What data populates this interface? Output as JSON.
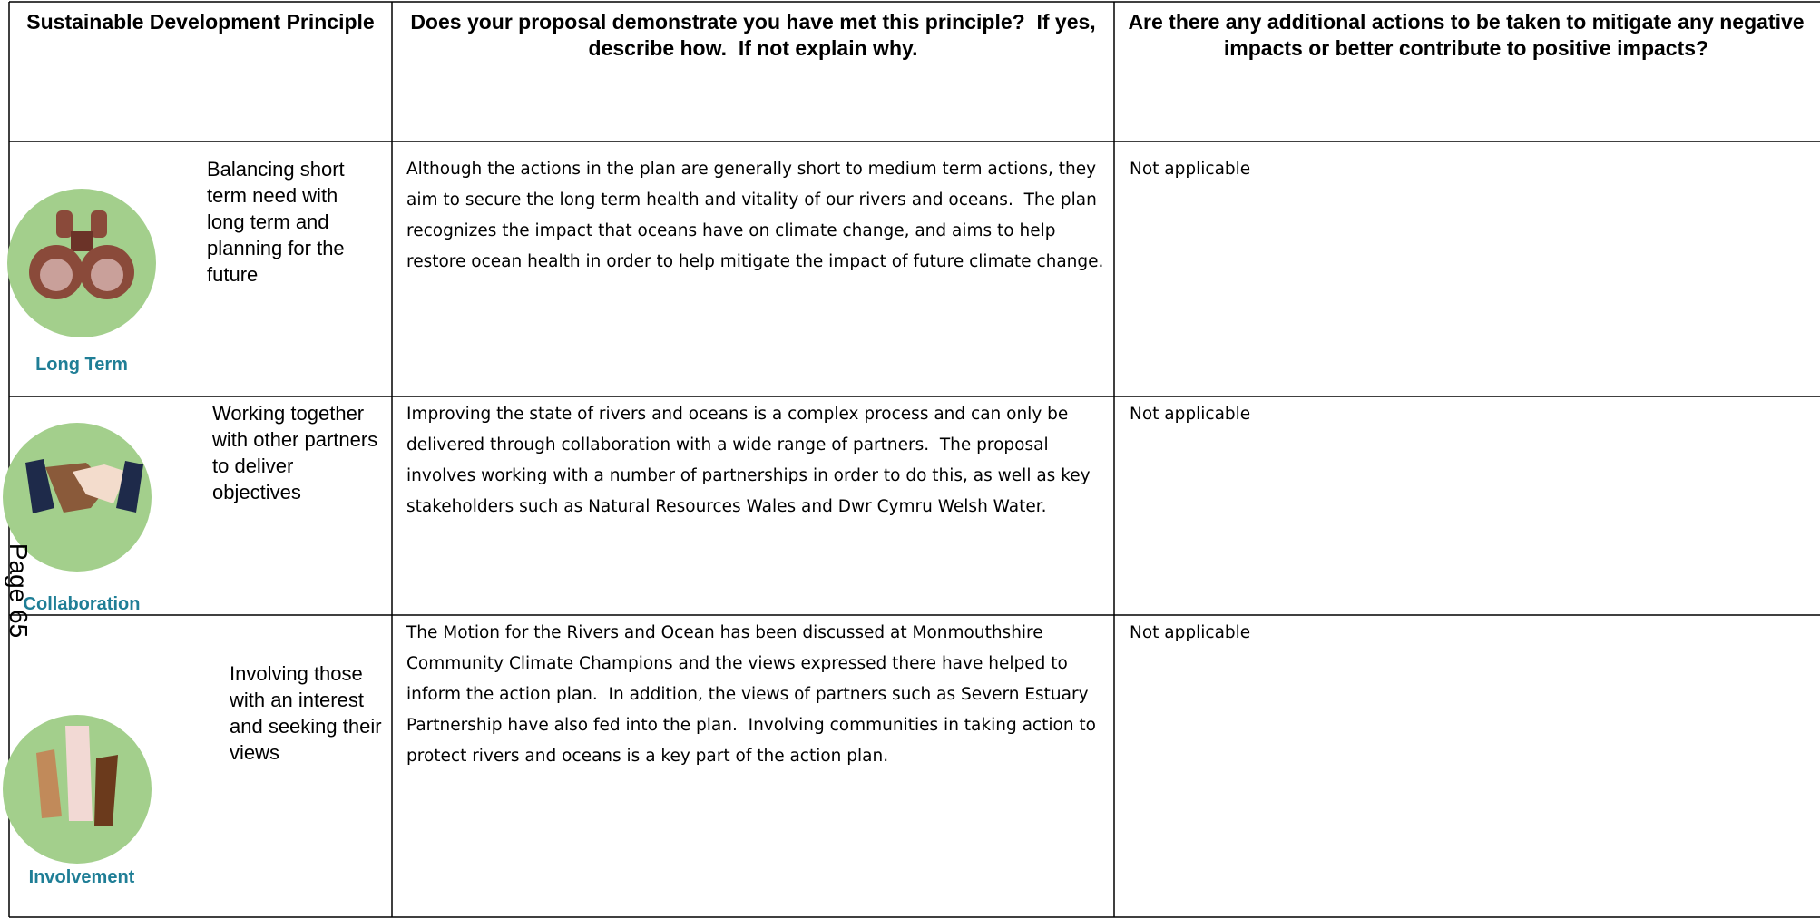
{
  "table": {
    "header": [
      "Sustainable Development Principle",
      "Does your proposal demonstrate you have met this principle?  If yes, describe how.  If not explain why.",
      "Are there any additional actions to be taken to mitigate any negative impacts or better contribute to positive impacts?"
    ],
    "rows": [
      {
        "icon_label": "Long Term",
        "principle": "Balancing short term need with long term and planning for the future",
        "response": "Although the actions in the plan are generally short to medium term actions, they aim to secure the long term health and vitality of our rivers and oceans.  The plan recognizes the impact that oceans have on climate change, and aims to help restore ocean health in order to help mitigate the impact of future climate change.",
        "actions": "Not applicable"
      },
      {
        "icon_label": "Collaboration",
        "principle": "Working together with other partners to deliver objectives",
        "response": "Improving the state of rivers and oceans is a complex process and can only be delivered through collaboration with a wide range of partners.  The proposal involves working with a number of partnerships in order to do this, as well as key stakeholders such as Natural Resources Wales and Dwr Cymru Welsh Water.",
        "actions": "Not applicable"
      },
      {
        "icon_label": "Involvement",
        "principle": "Involving those with an interest and seeking their views",
        "response": "The Motion for the Rivers and Ocean has been discussed at Monmouthshire Community Climate Champions and the views expressed there have helped to inform the action plan.  In addition, the views of partners such as Severn Estuary Partnership have also fed into the plan.  Involving communities in taking action to protect rivers and oceans is a key part of the action plan.",
        "actions": "Not applicable"
      }
    ]
  },
  "page_number": "Page 65"
}
